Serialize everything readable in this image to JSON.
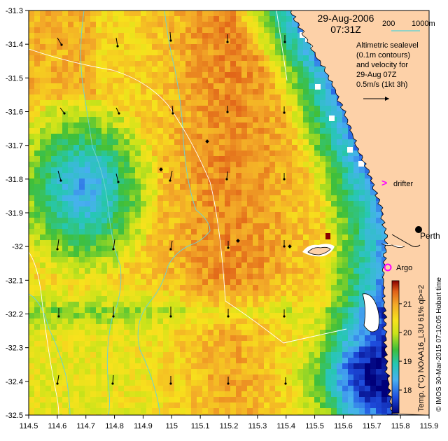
{
  "map": {
    "date_label": "29-Aug-2006",
    "time_label": "07:31Z",
    "depth_legend": {
      "label_200": "200",
      "label_1000": "1000m",
      "color": "#6fd3cf"
    },
    "description_lines": [
      "Altimetric sealevel",
      "(0.1m contours)",
      "and velocity for",
      "29-Aug 07Z",
      "0.5m/s (1kt 3h)"
    ],
    "places": {
      "perth": "Perth",
      "drifter": "drifter",
      "argo": "Argo"
    },
    "colorbar": {
      "label": "Temp. (°C) NOAA16_L3U 61% ql>=2",
      "ticks": [
        "21",
        "20",
        "19",
        "18"
      ],
      "range": [
        17.2,
        21.8
      ]
    },
    "credit": "© IMOS 30-Mar-2015 07:10:05 Hobart time",
    "x_ticks": [
      "114.5",
      "114.6",
      "114.7",
      "114.8",
      "114.9",
      "115",
      "115.1",
      "115.2",
      "115.3",
      "115.4",
      "115.5",
      "115.6",
      "115.7",
      "115.8",
      "115.9"
    ],
    "y_ticks": [
      "-31.3",
      "-31.4",
      "-31.5",
      "-31.6",
      "-31.7",
      "-31.8",
      "-31.9",
      "-32",
      "-32.1",
      "-32.2",
      "-32.3",
      "-32.4",
      "-32.5"
    ],
    "colors": {
      "land": "#fdd1a8",
      "drifter_marker": "#ff00ff",
      "argo_marker": "#ff00ff",
      "contour": "#ffffff",
      "isobath": "#6fd3cf"
    }
  }
}
